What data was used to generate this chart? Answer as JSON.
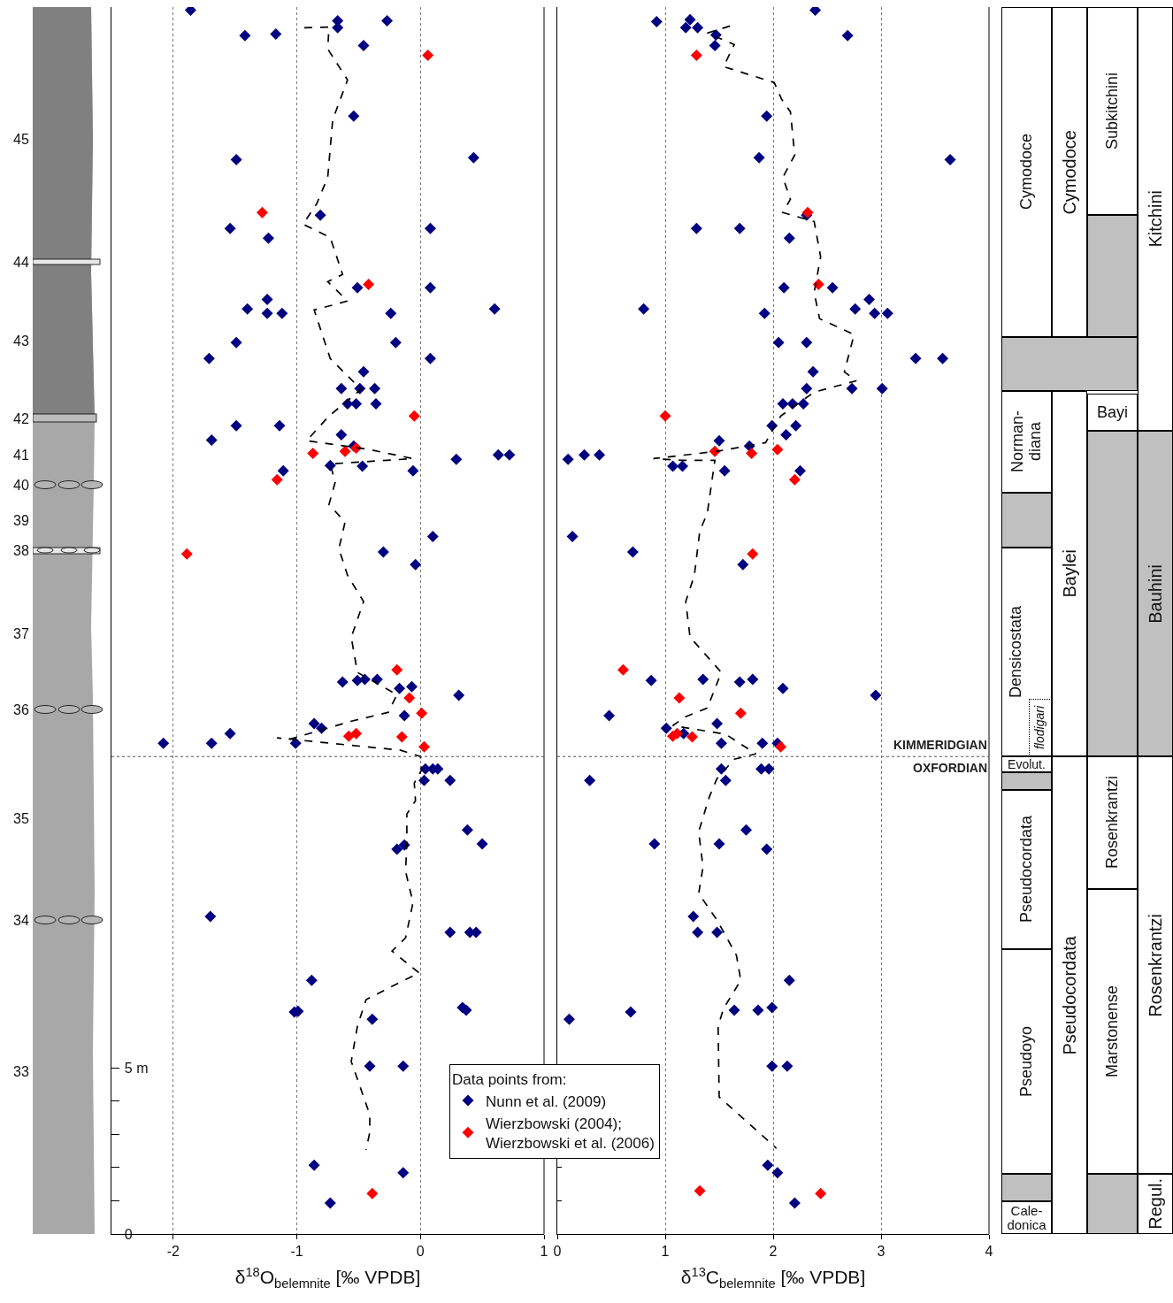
{
  "chart_data": [
    {
      "type": "scatter",
      "xlabel": "δ$^{18}$O$_{belemnite}$ [‰ VPDB]",
      "xlim": [
        -2.5,
        1
      ],
      "xticks": [
        -2,
        -1,
        0,
        1
      ],
      "ylim": [
        0,
        36.9
      ],
      "yticks": [
        0,
        {
          "value": 1,
          "label": null
        },
        {
          "value": 2,
          "label": null
        },
        {
          "value": 3,
          "label": null
        },
        {
          "value": 4,
          "label": null
        },
        {
          "value": 5,
          "label": "5 m"
        }
      ],
      "annotations": [
        "33",
        "34",
        "35",
        "36",
        "37",
        "38",
        "39",
        "40",
        "41",
        "42",
        "43",
        "44",
        "45"
      ],
      "grid": "x",
      "marker": "diamond",
      "legend": false,
      "ref_lines": [
        {
          "axis": "y",
          "value": 14.36,
          "color": "#555555",
          "line_style": "dotted"
        }
      ],
      "series": [
        {
          "color": "#000080",
          "x": [
            -1.86,
            -0.67,
            -0.67,
            -0.27,
            -1.42,
            -1.17,
            -0.46,
            -0.54,
            -1.49,
            0.43,
            -0.81,
            -1.54,
            -1.23,
            0.08,
            -0.51,
            0.08,
            -1.24,
            -1.4,
            -1.24,
            -1.12,
            -0.24,
            0.6,
            -1.49,
            -0.2,
            -1.71,
            0.08,
            -0.46,
            -0.64,
            -0.49,
            -0.37,
            -0.59,
            -0.52,
            -0.36,
            -1.69,
            -1.49,
            -1.14,
            -0.64,
            -0.54,
            0.72,
            0.63,
            0.29,
            -0.73,
            -1.11,
            -0.47,
            -0.06,
            0.1,
            -0.3,
            -0.04,
            -0.63,
            -0.51,
            -0.45,
            -0.35,
            -0.17,
            -0.07,
            0.31,
            -0.13,
            -1.54,
            -0.86,
            -0.8,
            -2.08,
            -1.69,
            -1.01,
            0.04,
            0.1,
            0.14,
            0.03,
            0.24,
            0.38,
            0.5,
            -0.13,
            -0.19,
            -1.7,
            0.24,
            0.4,
            0.45,
            -0.88,
            0.34,
            0.37,
            -1.02,
            -0.99,
            -0.39,
            -0.41,
            -0.14,
            -0.86,
            -0.14,
            -0.73
          ],
          "values": [
            36.81,
            36.49,
            36.28,
            36.49,
            36.04,
            36.09,
            35.74,
            33.62,
            32.31,
            32.37,
            30.64,
            30.24,
            29.95,
            30.24,
            28.46,
            28.46,
            28.11,
            27.82,
            27.69,
            27.69,
            27.69,
            27.82,
            26.81,
            26.81,
            26.33,
            26.33,
            25.93,
            25.43,
            25.43,
            25.43,
            24.97,
            24.97,
            24.97,
            23.88,
            24.31,
            24.31,
            24.04,
            23.7,
            23.43,
            23.43,
            23.3,
            23.11,
            22.95,
            23.09,
            22.95,
            20.98,
            20.51,
            20.13,
            16.6,
            16.65,
            16.68,
            16.68,
            16.41,
            16.46,
            16.2,
            15.59,
            15.05,
            15.35,
            15.21,
            14.76,
            14.76,
            14.76,
            13.99,
            13.99,
            13.99,
            13.64,
            13.64,
            12.15,
            11.73,
            11.7,
            11.57,
            9.55,
            9.07,
            9.07,
            9.07,
            7.63,
            6.81,
            6.73,
            6.68,
            6.7,
            6.46,
            5.05,
            5.05,
            2.07,
            1.84,
            0.93
          ]
        },
        {
          "color": "#ff0000",
          "x": [
            0.06,
            -1.28,
            -0.42,
            -0.05,
            -0.87,
            -0.61,
            -0.52,
            -1.16,
            -1.89,
            -0.19,
            -0.09,
            0.01,
            -0.58,
            -0.52,
            -0.15,
            0.03,
            -0.39
          ],
          "values": [
            35.45,
            30.72,
            28.56,
            24.6,
            23.48,
            23.54,
            23.64,
            22.69,
            20.45,
            16.97,
            16.12,
            15.66,
            14.97,
            15.05,
            14.95,
            14.65,
            1.22
          ]
        },
        {
          "type": "line",
          "color": "#000000",
          "marker": "none",
          "line_style": "dashed",
          "x": [
            -0.94,
            -0.74,
            -0.75,
            -0.59,
            -0.71,
            -0.75,
            -0.84,
            -0.95,
            -0.73,
            -0.63,
            -0.75,
            -0.59,
            -0.86,
            -0.73,
            -0.48,
            -0.74,
            -0.92,
            -0.41,
            -0.06,
            -0.73,
            -0.69,
            -0.74,
            -0.61,
            -0.66,
            -0.59,
            -0.46,
            -0.56,
            -0.51,
            -0.19,
            -0.26,
            -0.55,
            -1.05,
            -1.16,
            -0.16,
            0.0,
            0.01,
            -0.05,
            -0.04,
            -0.11,
            -0.11,
            -0.12,
            -0.06,
            -0.12,
            -0.23,
            -0.01,
            -0.16,
            -0.44,
            -0.51,
            -0.56,
            -0.41,
            -0.41,
            -0.44
          ],
          "values": [
            36.28,
            36.3,
            35.64,
            34.71,
            33.51,
            31.78,
            30.98,
            30.37,
            29.97,
            28.86,
            28.64,
            28.06,
            27.79,
            26.33,
            25.4,
            24.6,
            23.86,
            23.59,
            23.32,
            23.16,
            22.61,
            21.94,
            21.41,
            20.61,
            19.81,
            19.02,
            17.95,
            16.89,
            16.22,
            15.69,
            15.43,
            14.89,
            14.92,
            14.55,
            14.36,
            13.96,
            13.56,
            13.03,
            12.63,
            11.84,
            10.9,
            9.97,
            8.91,
            8.51,
            7.85,
            7.58,
            7.05,
            6.25,
            5.19,
            3.59,
            3.06,
            2.53
          ]
        }
      ]
    },
    {
      "type": "scatter",
      "xlabel": "δ$^{13}$C$_{belemnite}$ [‰ VPDB]",
      "xlim": [
        0,
        4
      ],
      "xticks": [
        0,
        1,
        2,
        3,
        4
      ],
      "ylim": [
        0,
        36.9
      ],
      "yticks": [
        {
          "value": 0,
          "label": null
        },
        {
          "value": 1,
          "label": null
        },
        {
          "value": 2,
          "label": null
        },
        {
          "value": 3,
          "label": null
        },
        {
          "value": 4,
          "label": null
        },
        {
          "value": 5,
          "label": null
        }
      ],
      "tick_labels": "x",
      "grid": "x",
      "marker": "diamond",
      "legend": "bottom left",
      "legend_title": "Data points from:",
      "ref_lines": [
        {
          "axis": "y",
          "value": 14.36,
          "label": "KIMMERIDGIAN",
          "color": "#555555",
          "line_style": "dotted"
        }
      ],
      "annotations": [
        {
          "text": "OXFORDIAN",
          "x": 4,
          "y": 14.36
        }
      ],
      "series": [
        {
          "name": "Nunn et al. (2009)",
          "color": "#000080",
          "x": [
            2.39,
            0.92,
            1.23,
            1.19,
            1.3,
            1.47,
            1.46,
            2.69,
            1.94,
            1.87,
            3.64,
            2.31,
            1.29,
            1.69,
            2.15,
            2.1,
            2.55,
            2.89,
            0.8,
            1.92,
            2.76,
            2.94,
            3.06,
            2.05,
            2.31,
            3.32,
            3.57,
            2.37,
            2.31,
            2.73,
            3.01,
            2.09,
            2.18,
            2.28,
            1.99,
            2.21,
            2.12,
            1.5,
            1.78,
            0.25,
            0.39,
            0.1,
            1.07,
            1.16,
            1.55,
            2.25,
            0.14,
            0.7,
            1.72,
            0.87,
            1.35,
            1.69,
            1.81,
            2.09,
            2.95,
            0.48,
            1.48,
            1.01,
            1.17,
            1.52,
            1.9,
            2.04,
            1.52,
            1.89,
            1.96,
            1.56,
            0.3,
            1.75,
            0.9,
            1.5,
            1.94,
            1.26,
            1.48,
            1.3,
            2.15,
            0.11,
            0.68,
            1.64,
            1.86,
            1.99,
            1.99,
            2.13,
            1.95,
            2.04,
            2.2
          ],
          "values": [
            36.81,
            36.46,
            36.52,
            36.28,
            36.28,
            36.06,
            35.74,
            36.04,
            33.62,
            32.37,
            32.31,
            30.64,
            30.24,
            30.24,
            29.95,
            28.46,
            28.46,
            28.11,
            27.82,
            27.69,
            27.82,
            27.69,
            27.69,
            26.81,
            26.81,
            26.33,
            26.33,
            25.93,
            25.43,
            25.43,
            25.43,
            24.97,
            24.97,
            24.97,
            24.31,
            24.31,
            24.04,
            23.86,
            23.7,
            23.43,
            23.43,
            23.3,
            23.09,
            23.09,
            22.95,
            22.95,
            20.98,
            20.51,
            20.13,
            16.65,
            16.68,
            16.6,
            16.68,
            16.41,
            16.2,
            15.59,
            15.35,
            15.21,
            15.05,
            14.76,
            14.76,
            14.76,
            13.99,
            13.99,
            13.99,
            13.64,
            13.64,
            12.15,
            11.73,
            11.73,
            11.57,
            9.55,
            9.07,
            9.07,
            7.63,
            6.46,
            6.68,
            6.73,
            6.73,
            6.81,
            5.05,
            5.05,
            2.07,
            1.84,
            0.93
          ]
        },
        {
          "name": "Wierzbowski (2004); Wierzbowski et al. (2006)",
          "color": "#ff0000",
          "x": [
            1.29,
            2.32,
            2.42,
            1.0,
            1.46,
            1.8,
            2.04,
            2.2,
            1.81,
            0.61,
            1.13,
            1.7,
            1.07,
            1.11,
            1.25,
            2.07,
            1.32,
            2.44
          ],
          "values": [
            35.45,
            30.72,
            28.56,
            24.6,
            23.54,
            23.48,
            23.59,
            22.69,
            20.45,
            16.97,
            16.12,
            15.66,
            14.97,
            15.05,
            14.95,
            14.65,
            1.3,
            1.22
          ]
        },
        {
          "type": "line",
          "color": "#000000",
          "marker": "none",
          "line_style": "dashed",
          "x": [
            1.6,
            1.39,
            1.64,
            1.54,
            2.01,
            2.08,
            2.16,
            2.2,
            2.09,
            2.16,
            2.09,
            2.38,
            2.44,
            2.38,
            2.43,
            2.75,
            2.66,
            2.77,
            2.38,
            2.07,
            1.93,
            1.48,
            0.89,
            1.15,
            1.46,
            1.39,
            1.32,
            1.27,
            1.19,
            1.23,
            1.52,
            1.39,
            1.19,
            1.07,
            1.56,
            1.84,
            1.64,
            1.48,
            1.41,
            1.31,
            1.35,
            1.31,
            1.48,
            1.66,
            1.7,
            1.54,
            1.49,
            1.5,
            2.03
          ],
          "values": [
            36.33,
            36.12,
            35.77,
            35.11,
            34.63,
            34.12,
            33.75,
            32.45,
            31.78,
            31.12,
            30.72,
            30.45,
            29.39,
            28.32,
            27.53,
            27.05,
            25.93,
            25.66,
            25.32,
            24.6,
            23.8,
            23.54,
            23.32,
            23.27,
            23.27,
            21.68,
            21.14,
            19.81,
            19.02,
            17.95,
            16.89,
            15.82,
            15.56,
            15.29,
            15.03,
            14.44,
            14.28,
            13.7,
            13.16,
            12.1,
            11.04,
            10.24,
            9.44,
            8.38,
            7.63,
            6.78,
            6.25,
            4.12,
            2.58
          ]
        }
      ]
    },
    {
      "type": "other",
      "annotations": [
        "Cymodoce",
        "Norman-\ndiana",
        "Densicostata",
        "flodigari",
        "Evolut.",
        "Pseudocordata",
        "Pseudoyo",
        "Cale-\ndonica",
        "Cymodoce",
        "Baylei",
        "Pseudocordata",
        "Subkitchini",
        "Bayi",
        "Rosenkrantzi",
        "Marstonense",
        "Kitchini",
        "Bauhini",
        "Rosenkrantzi",
        "Regul."
      ]
    }
  ]
}
